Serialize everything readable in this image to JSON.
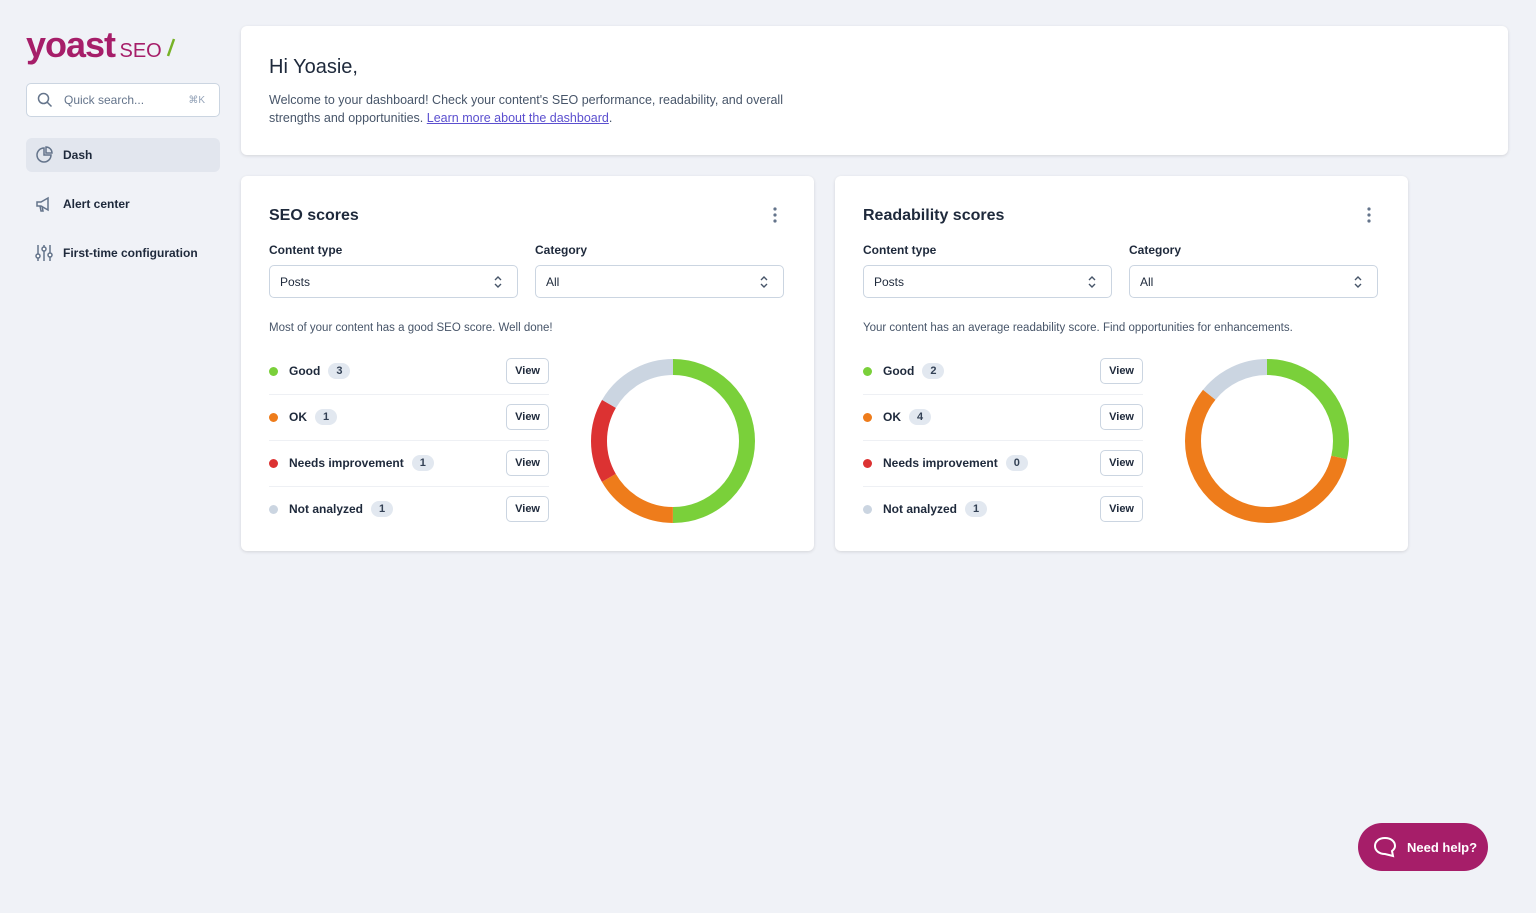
{
  "sidebar": {
    "logo": "yoast",
    "logo_suffix": "SEO",
    "search_placeholder": "Quick search...",
    "search_shortcut": "⌘K",
    "nav": [
      "Dash",
      "Alert center",
      "First-time configuration"
    ]
  },
  "welcome": {
    "title": "Hi Yoasie,",
    "text": "Welcome to your dashboard! Check your content's SEO performance, readability, and overall strengths and opportunities.",
    "link": "Learn more about the dashboard",
    "link_suffix": "."
  },
  "cards": [
    {
      "title": "SEO scores",
      "content_type_label": "Content type",
      "content_type": "Posts",
      "category_label": "Category",
      "category": "All",
      "message": "Most of your content has a good SEO score. Well done!",
      "button": "View",
      "scores": [
        {
          "name": "Good",
          "count": 3,
          "color": "#7ad03a"
        },
        {
          "name": "OK",
          "count": 1,
          "color": "#ee7c1b"
        },
        {
          "name": "Needs improvement",
          "count": 1,
          "color": "#dc3232"
        },
        {
          "name": "Not analyzed",
          "count": 1,
          "color": "#cbd5e1"
        }
      ]
    },
    {
      "title": "Readability scores",
      "content_type_label": "Content type",
      "content_type": "Posts",
      "category_label": "Category",
      "category": "All",
      "message": "Your content has an average readability score. Find opportunities for enhancements.",
      "button": "View",
      "scores": [
        {
          "name": "Good",
          "count": 2,
          "color": "#7ad03a"
        },
        {
          "name": "OK",
          "count": 4,
          "color": "#ee7c1b"
        },
        {
          "name": "Needs improvement",
          "count": 0,
          "color": "#dc3232"
        },
        {
          "name": "Not analyzed",
          "count": 1,
          "color": "#cbd5e1"
        }
      ]
    }
  ],
  "help_button": "Need help?"
}
